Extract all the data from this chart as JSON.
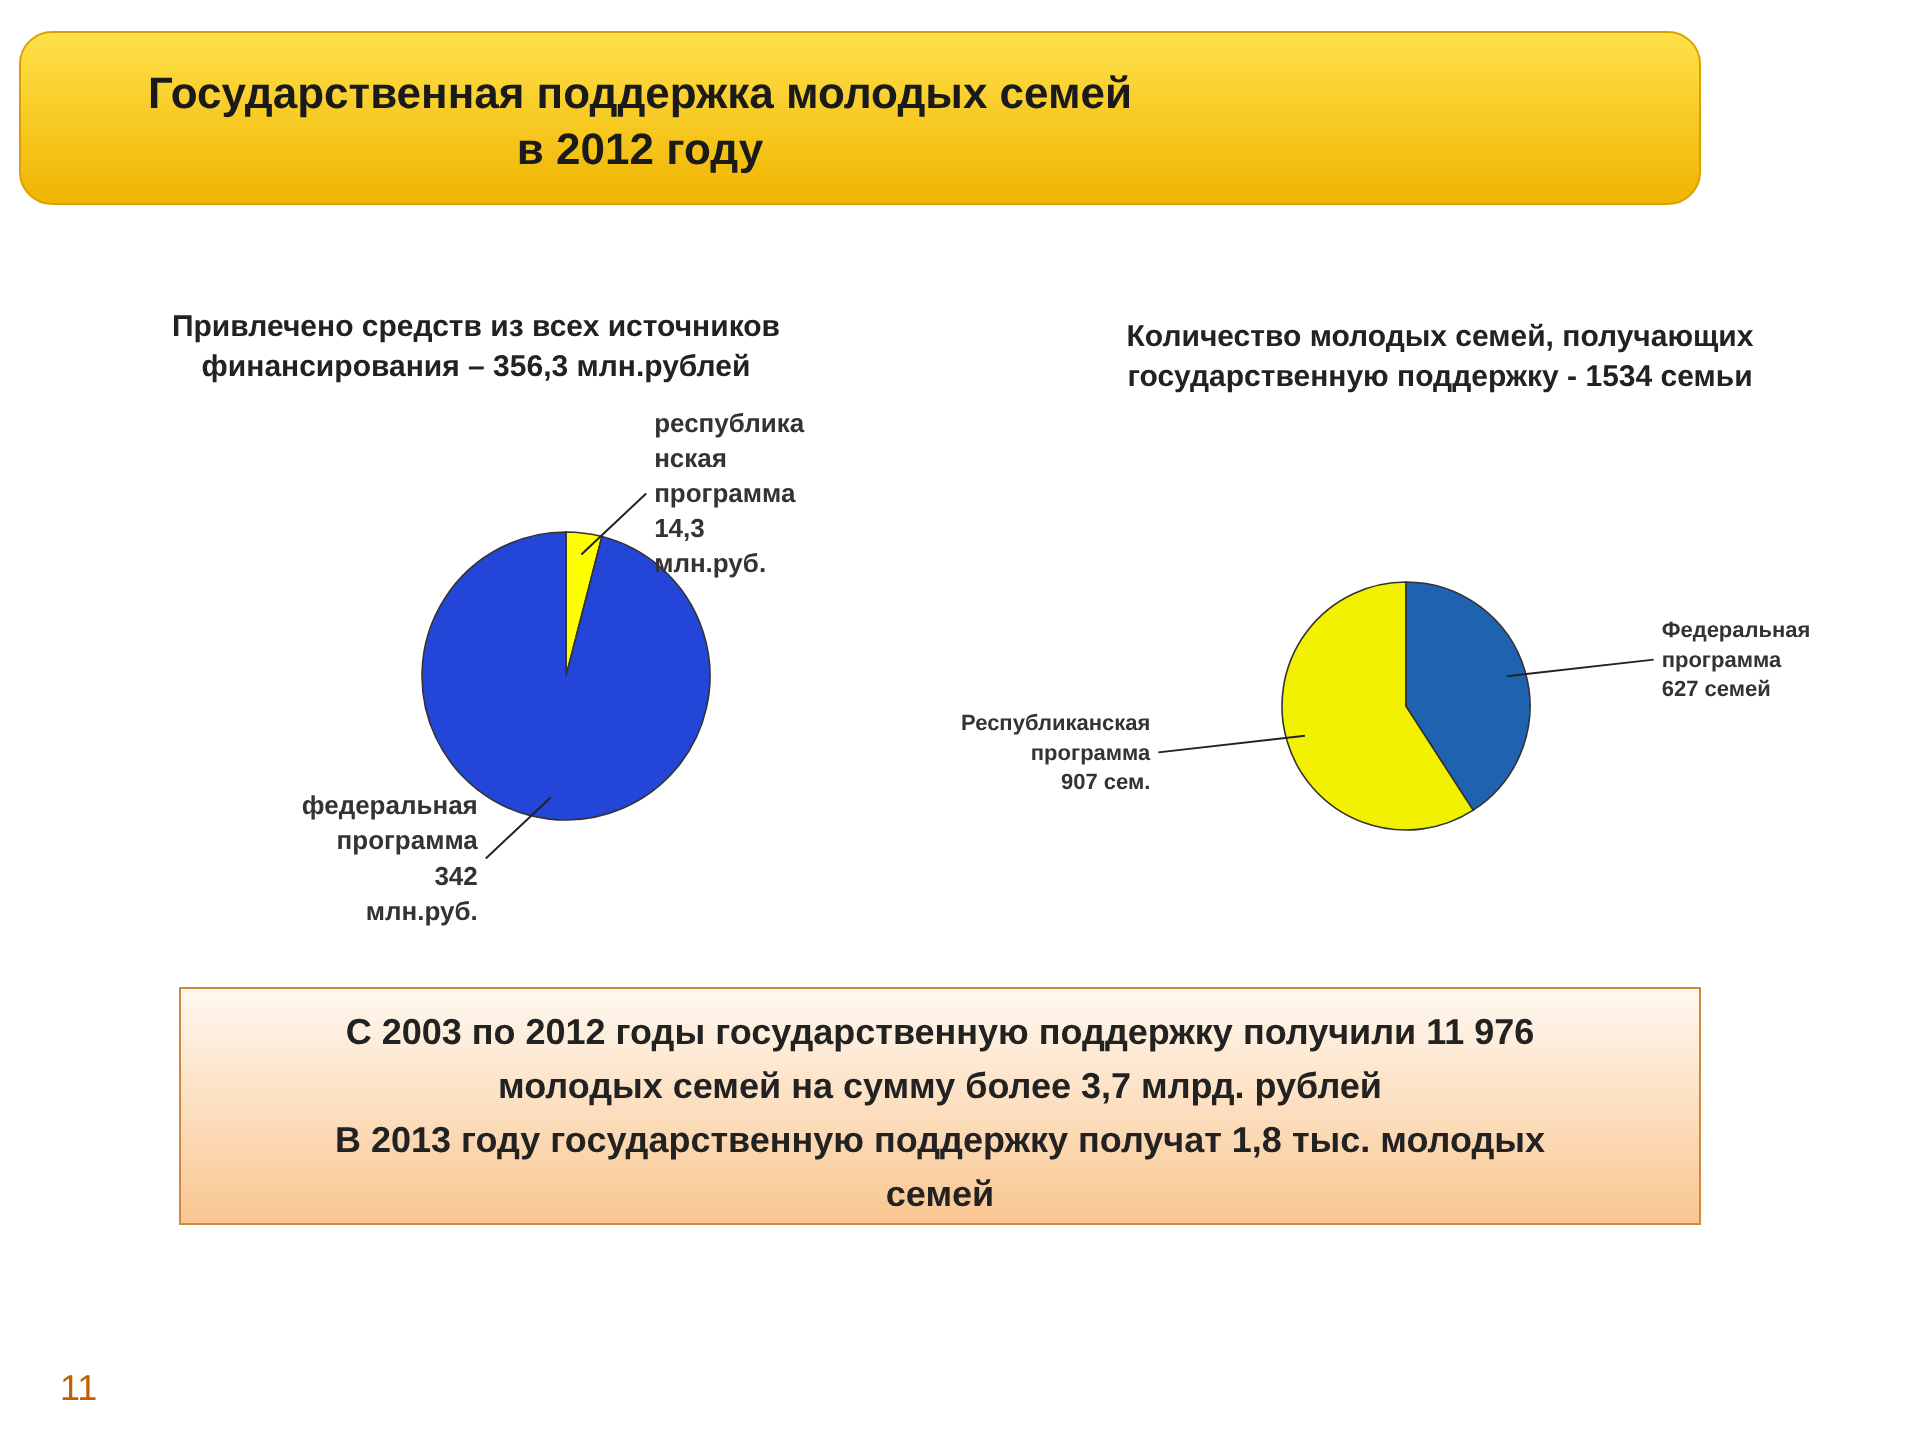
{
  "chart_data": [
    {
      "type": "pie",
      "title": "Государственная поддержка молодых семей в 2012 году",
      "subtitle": "Привлечено средств из всех источников финансирования – 356,3 млн.рублей",
      "categories": [
        "республиканская программа",
        "федеральная программа"
      ],
      "values": [
        14.3,
        342
      ],
      "colors": [
        "#ffff00",
        "#2346d8"
      ],
      "value_labels": [
        "14,3 млн.руб.",
        "342 млн.руб."
      ],
      "annotations": [
        "11"
      ]
    },
    {
      "type": "pie",
      "subtitle": "Количество молодых семей, получающих государственную поддержку - 1534 семьи",
      "categories": [
        "Республиканская программа",
        "Федеральная программа"
      ],
      "values": [
        907,
        627
      ],
      "colors": [
        "#f2f200",
        "#1f63b0"
      ],
      "value_labels": [
        "907 сем.",
        "627 семей"
      ],
      "annotations": [
        "С 2003 по 2012 годы государственную поддержку получили 11 976 молодых семей на сумму более 3,7 млрд. рублей",
        "В 2013 году государственную поддержку получат 1,8 тыс. молодых семей"
      ]
    }
  ]
}
